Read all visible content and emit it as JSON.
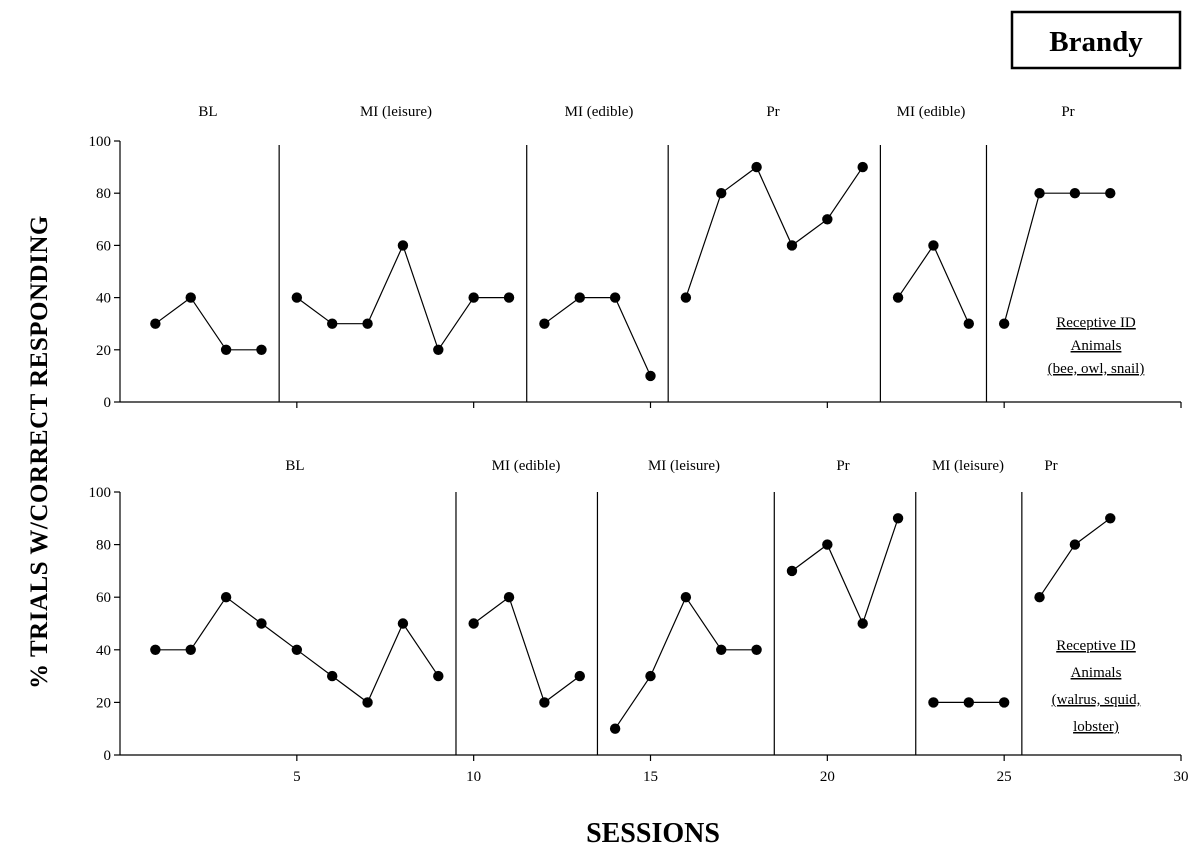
{
  "badge": "Brandy",
  "chart_data": [
    {
      "type": "line",
      "ylabel": "% TRIALS W/CORRECT RESPONDING",
      "xlim": [
        0,
        30
      ],
      "ylim": [
        0,
        100
      ],
      "yticks": [
        0,
        20,
        40,
        60,
        80,
        100
      ],
      "phase_labels": [
        "BL",
        "MI (leisure)",
        "MI (edible)",
        "Pr",
        "MI (edible)",
        "Pr"
      ],
      "phase_lines": [
        4.5,
        11.5,
        15.5,
        21.5,
        24.5
      ],
      "series": [
        {
          "points": [
            [
              1,
              30
            ],
            [
              2,
              40
            ],
            [
              3,
              20
            ],
            [
              4,
              20
            ],
            [
              5,
              40
            ],
            [
              6,
              30
            ],
            [
              7,
              30
            ],
            [
              8,
              60
            ],
            [
              9,
              20
            ],
            [
              10,
              40
            ],
            [
              11,
              40
            ],
            [
              12,
              30
            ],
            [
              13,
              40
            ],
            [
              14,
              40
            ],
            [
              15,
              10
            ],
            [
              16,
              40
            ],
            [
              17,
              80
            ],
            [
              18,
              90
            ],
            [
              19,
              60
            ],
            [
              20,
              70
            ],
            [
              21,
              90
            ],
            [
              22,
              40
            ],
            [
              23,
              60
            ],
            [
              24,
              30
            ],
            [
              25,
              30
            ],
            [
              26,
              80
            ],
            [
              27,
              80
            ],
            [
              28,
              80
            ]
          ],
          "segments": [
            [
              1,
              4
            ],
            [
              5,
              11
            ],
            [
              12,
              15
            ],
            [
              16,
              21
            ],
            [
              22,
              24
            ],
            [
              25,
              28
            ]
          ]
        }
      ],
      "annotation": [
        "Receptive ID",
        "Animals",
        "(bee, owl, snail)"
      ]
    },
    {
      "type": "line",
      "xlabel": "SESSIONS",
      "xlim": [
        0,
        30
      ],
      "ylim": [
        0,
        100
      ],
      "xticks": [
        5,
        10,
        15,
        20,
        25,
        30
      ],
      "yticks": [
        0,
        20,
        40,
        60,
        80,
        100
      ],
      "phase_labels": [
        "BL",
        "MI (edible)",
        "MI (leisure)",
        "Pr",
        "MI (leisure)",
        "Pr"
      ],
      "phase_lines": [
        9.5,
        13.5,
        18.5,
        22.5,
        25.5
      ],
      "series": [
        {
          "points": [
            [
              1,
              40
            ],
            [
              2,
              40
            ],
            [
              3,
              60
            ],
            [
              4,
              50
            ],
            [
              5,
              40
            ],
            [
              6,
              30
            ],
            [
              7,
              20
            ],
            [
              8,
              50
            ],
            [
              9,
              30
            ],
            [
              10,
              50
            ],
            [
              11,
              60
            ],
            [
              12,
              20
            ],
            [
              13,
              30
            ],
            [
              14,
              10
            ],
            [
              15,
              30
            ],
            [
              16,
              60
            ],
            [
              17,
              40
            ],
            [
              18,
              40
            ],
            [
              19,
              70
            ],
            [
              20,
              80
            ],
            [
              21,
              50
            ],
            [
              22,
              90
            ],
            [
              23,
              20
            ],
            [
              24,
              20
            ],
            [
              25,
              20
            ],
            [
              26,
              60
            ],
            [
              27,
              80
            ],
            [
              28,
              90
            ]
          ],
          "segments": [
            [
              1,
              9
            ],
            [
              10,
              13
            ],
            [
              14,
              18
            ],
            [
              19,
              22
            ],
            [
              23,
              25
            ],
            [
              26,
              28
            ]
          ]
        }
      ],
      "annotation": [
        "Receptive ID",
        "Animals",
        "(walrus, squid,",
        "lobster)"
      ]
    }
  ]
}
